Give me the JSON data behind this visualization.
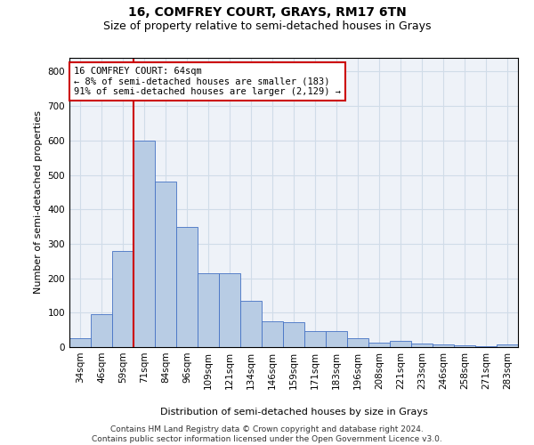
{
  "title": "16, COMFREY COURT, GRAYS, RM17 6TN",
  "subtitle": "Size of property relative to semi-detached houses in Grays",
  "xlabel": "Distribution of semi-detached houses by size in Grays",
  "ylabel": "Number of semi-detached properties",
  "categories": [
    "34sqm",
    "46sqm",
    "59sqm",
    "71sqm",
    "84sqm",
    "96sqm",
    "109sqm",
    "121sqm",
    "134sqm",
    "146sqm",
    "159sqm",
    "171sqm",
    "183sqm",
    "196sqm",
    "208sqm",
    "221sqm",
    "233sqm",
    "246sqm",
    "258sqm",
    "271sqm",
    "283sqm"
  ],
  "values": [
    25,
    95,
    280,
    600,
    480,
    350,
    215,
    215,
    135,
    75,
    72,
    47,
    47,
    27,
    13,
    17,
    10,
    7,
    5,
    2,
    7
  ],
  "bar_color": "#b8cce4",
  "bar_edge_color": "#4472c4",
  "grid_color": "#d0dce8",
  "background_color": "#eef2f8",
  "annotation_text": "16 COMFREY COURT: 64sqm\n← 8% of semi-detached houses are smaller (183)\n91% of semi-detached houses are larger (2,129) →",
  "annotation_box_color": "#ffffff",
  "annotation_box_edge_color": "#cc0000",
  "vline_x": 2.5,
  "vline_color": "#cc0000",
  "ylim": [
    0,
    840
  ],
  "yticks": [
    0,
    100,
    200,
    300,
    400,
    500,
    600,
    700,
    800
  ],
  "footnote": "Contains HM Land Registry data © Crown copyright and database right 2024.\nContains public sector information licensed under the Open Government Licence v3.0.",
  "title_fontsize": 10,
  "subtitle_fontsize": 9,
  "axis_label_fontsize": 8,
  "tick_fontsize": 7.5,
  "annotation_fontsize": 7.5,
  "footnote_fontsize": 6.5
}
